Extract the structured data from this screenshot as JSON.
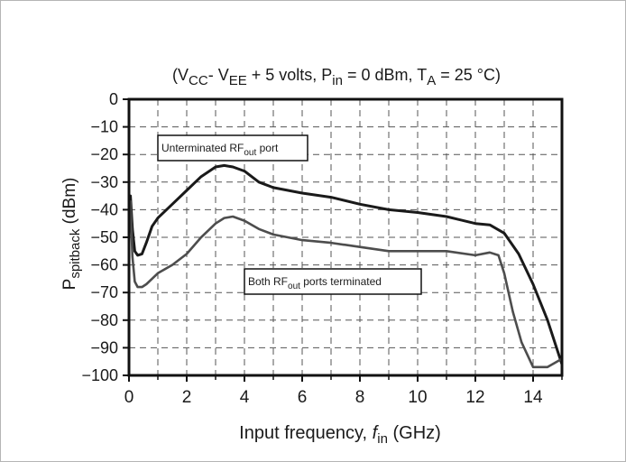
{
  "chart_data": {
    "type": "line",
    "title": {
      "open": "(V",
      "vcc_sub": "CC",
      "vee_pre": "- V",
      "vee_sub": "EE",
      "pin_pre": " + 5 volts, P",
      "pin_sub": "in",
      "ta_pre": " = 0 dBm, T",
      "ta_sub": "A",
      "close": " = 25 °C)"
    },
    "ylabel": {
      "main": "P",
      "sub": "spitback",
      "unit": " (dBm)"
    },
    "xlabel": {
      "main": "Input frequency, ",
      "var": "f",
      "sub": "in",
      "unit": " (GHz)"
    },
    "xlim": [
      0,
      15
    ],
    "ylim": [
      -100,
      0
    ],
    "xticks": [
      "0",
      "2",
      "4",
      "6",
      "8",
      "10",
      "12",
      "14"
    ],
    "yticks": [
      "0",
      "−10",
      "−20",
      "−30",
      "−40",
      "−50",
      "−60",
      "−70",
      "−80",
      "−90",
      "−100"
    ],
    "grid": true,
    "annotations": [
      {
        "pre": "Unterminated RF",
        "sub": "out",
        "post": " port"
      },
      {
        "pre": "Both RF",
        "sub": "out",
        "post": " ports terminated"
      }
    ],
    "series": [
      {
        "color": "#1a1a1a",
        "x": [
          0.05,
          0.12,
          0.2,
          0.3,
          0.45,
          0.6,
          0.8,
          1.0,
          1.5,
          2.0,
          2.5,
          3.0,
          3.3,
          3.6,
          4.0,
          4.5,
          5.0,
          6.0,
          7.0,
          8.0,
          9.0,
          10.0,
          11.0,
          12.0,
          12.5,
          13.0,
          13.5,
          14.0,
          14.5,
          15.0
        ],
        "y": [
          -35,
          -47,
          -55,
          -56.5,
          -56,
          -52,
          -46,
          -43,
          -38,
          -33,
          -28,
          -24.5,
          -24,
          -24.5,
          -26,
          -30,
          -32,
          -34,
          -35.5,
          -38,
          -40,
          -41,
          -42.5,
          -45,
          -45.5,
          -48.5,
          -56,
          -67,
          -80,
          -96
        ]
      },
      {
        "color": "#4d4d4d",
        "x": [
          0.05,
          0.12,
          0.2,
          0.3,
          0.45,
          0.6,
          0.8,
          1.0,
          1.5,
          2.0,
          2.5,
          3.0,
          3.3,
          3.6,
          4.0,
          4.5,
          5.0,
          6.0,
          7.0,
          8.0,
          9.0,
          10.0,
          11.0,
          12.0,
          12.5,
          12.8,
          13.0,
          13.3,
          13.6,
          14.0,
          14.5,
          15.0
        ],
        "y": [
          -37,
          -57,
          -66,
          -68,
          -68,
          -67,
          -65,
          -63,
          -60,
          -56,
          -50,
          -45,
          -43,
          -42.5,
          -44,
          -47,
          -49,
          -51,
          -52,
          -53.5,
          -55,
          -55,
          -55,
          -56.5,
          -55.5,
          -56.5,
          -63,
          -77,
          -88,
          -97,
          -97,
          -94
        ]
      }
    ]
  }
}
